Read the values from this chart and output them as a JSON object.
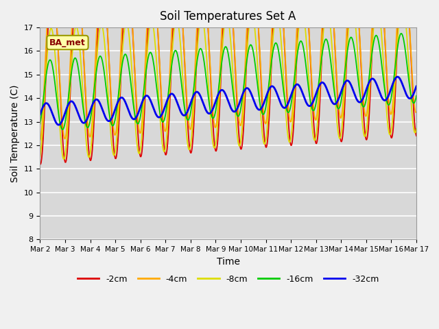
{
  "title": "Soil Temperatures Set A",
  "xlabel": "Time",
  "ylabel": "Soil Temperature (C)",
  "ylim": [
    8.0,
    17.0
  ],
  "yticks": [
    8.0,
    9.0,
    10.0,
    11.0,
    12.0,
    13.0,
    14.0,
    15.0,
    16.0,
    17.0
  ],
  "legend_labels": [
    "-2cm",
    "-4cm",
    "-8cm",
    "-16cm",
    "-32cm"
  ],
  "legend_colors": [
    "#dd0000",
    "#ffaa00",
    "#dddd00",
    "#00cc00",
    "#0000ee"
  ],
  "annotation_text": "BA_met",
  "annotation_bg": "#ffffaa",
  "annotation_edge": "#999900",
  "bg_color": "#d8d8d8",
  "xtick_labels": [
    "Mar 2",
    "Mar 3",
    "Mar 4",
    "Mar 5",
    "Mar 6",
    "Mar 7",
    "Mar 8",
    "Mar 9",
    "Mar 10",
    "Mar 11",
    "Mar 12",
    "Mar 13",
    "Mar 14",
    "Mar 15",
    "Mar 16",
    "Mar 17"
  ],
  "num_points": 721,
  "days": 15
}
